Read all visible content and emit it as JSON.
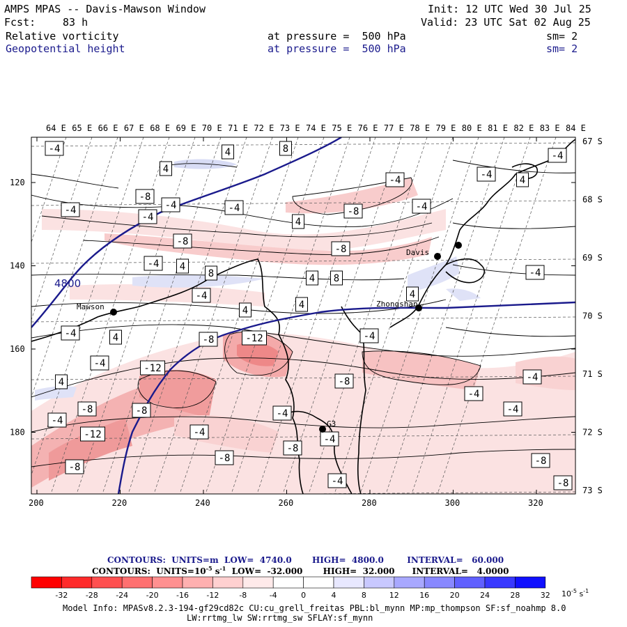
{
  "header": {
    "title": "AMPS MPAS -- Davis-Mawson Window",
    "init": "Init: 12 UTC Wed 30 Jul 25",
    "fcst_label": "Fcst:",
    "fcst_value": "83 h",
    "valid": "Valid: 23 UTC Sat 02 Aug 25",
    "field1_name": "Relative vorticity",
    "field1_level": "at pressure =  500 hPa",
    "field1_sm": "sm= 2",
    "field2_name": "Geopotential height",
    "field2_level": "at pressure =  500 hPa",
    "field2_sm": "sm= 2"
  },
  "map": {
    "top_lon_labels": [
      "64 E",
      "65 E",
      "66 E",
      "67 E",
      "68 E",
      "69 E",
      "70 E",
      "71 E",
      "72 E",
      "73 E",
      "74 E",
      "75 E",
      "76 E",
      "77 E",
      "78 E",
      "79 E",
      "80 E",
      "81 E",
      "82 E",
      "83 E",
      "84 E"
    ],
    "right_lat_labels": [
      "67 S",
      "68 S",
      "69 S",
      "70 S",
      "71 S",
      "72 S",
      "73 S"
    ],
    "left_y_ticks": [
      "120",
      "140",
      "160",
      "180"
    ],
    "bottom_x_ticks": [
      "200",
      "220",
      "240",
      "260",
      "280",
      "300",
      "320"
    ],
    "stations": [
      "Mawson",
      "Davis",
      "Zhongshan",
      "G3"
    ],
    "height_contour_label": "4800",
    "contour_labels": [
      "-4",
      "4",
      "8",
      "-8",
      "-12"
    ],
    "colors": {
      "geopotential": "#1a1a8c",
      "pos_vort": "#d8dcf5",
      "neg_vort_light": "#fbdcdc",
      "neg_vort_mid": "#f4a8a8",
      "neg_vort_strong": "#ee8080"
    }
  },
  "footer": {
    "contours1": "CONTOURS:  UNITS=m  LOW=  4740.0       HIGH=  4800.0        INTERVAL=   60.000",
    "contours2": "CONTOURS:  UNITS=10",
    "contours2_exp": "-5",
    "contours2_rest": " s",
    "contours2_exp2": "-1",
    "contours2_tail": "  LOW=  -32.000       HIGH=  32.000      INTERVAL=   4.0000",
    "colorbar_labels": [
      "-32",
      "-28",
      "-24",
      "-20",
      "-16",
      "-12",
      "-8",
      "-4",
      "0",
      "4",
      "8",
      "12",
      "16",
      "20",
      "24",
      "28",
      "32"
    ],
    "colorbar_unit": "10",
    "colorbar_unit_exp1": "-5",
    "colorbar_unit_s": " s",
    "colorbar_unit_exp2": "-1",
    "colorbar_colors": [
      "#ff0000",
      "#ff2a2a",
      "#ff5050",
      "#ff7070",
      "#ff9090",
      "#ffb0b0",
      "#ffd0d0",
      "#ffeaea",
      "#ffffff",
      "#ffffff",
      "#e8e8ff",
      "#c8c8ff",
      "#a8a8ff",
      "#8888ff",
      "#6060ff",
      "#3838ff",
      "#1010ff"
    ],
    "model_info": "Model Info: MPASv8.2.3-194-gf29cd82c CU:cu_grell_freitas PBL:bl_mynn MP:mp_thompson SF:sf_noahmp 8.0",
    "model_info2": "LW:rrtmg_lw SW:rrtmg_sw SFLAY:sf_mynn"
  }
}
